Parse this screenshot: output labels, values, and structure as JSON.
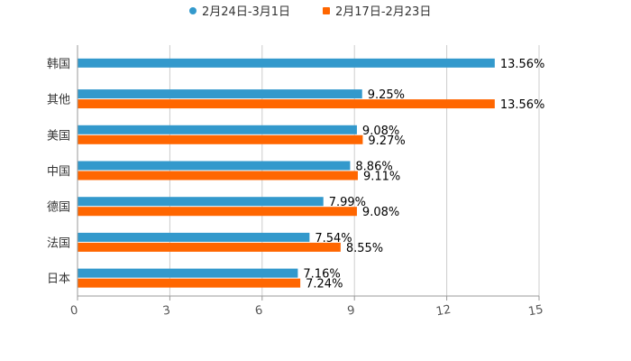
{
  "chart_data": {
    "type": "bar",
    "orientation": "horizontal",
    "categories": [
      "韩国",
      "其他",
      "美国",
      "中国",
      "德国",
      "法国",
      "日本"
    ],
    "series": [
      {
        "name": "2月24日-3月1日",
        "color": "#3399cc",
        "values": [
          13.56,
          9.25,
          9.08,
          8.86,
          7.99,
          7.54,
          7.16
        ],
        "labels": [
          "13.56%",
          "9.25%",
          "9.08%",
          "8.86%",
          "7.99%",
          "7.54%",
          "7.16%"
        ]
      },
      {
        "name": "2月17日-2月23日",
        "color": "#ff6600",
        "values": [
          null,
          13.56,
          9.27,
          9.11,
          9.08,
          8.55,
          7.24
        ],
        "labels": [
          "",
          "13.56%",
          "9.27%",
          "9.11%",
          "9.08%",
          "8.55%",
          "7.24%"
        ]
      }
    ],
    "xlim": [
      0,
      15
    ],
    "x_ticks": [
      0,
      3,
      6,
      9,
      12,
      15
    ],
    "x_tick_labels": [
      "0",
      "3",
      "6",
      "9",
      "12",
      "15"
    ],
    "grid": true,
    "legend_position": "top"
  }
}
